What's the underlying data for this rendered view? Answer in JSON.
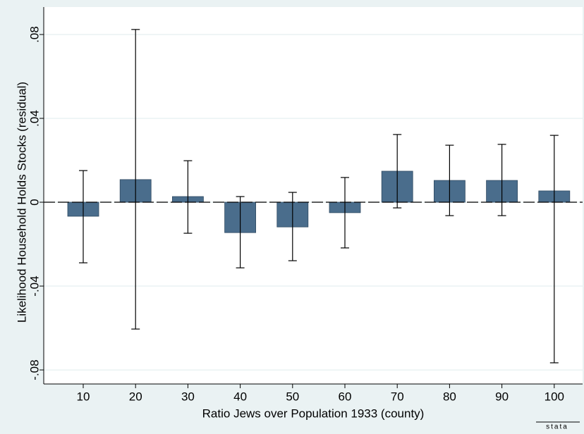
{
  "chart_data": {
    "type": "bar",
    "x_label": "Ratio Jews over Population 1933 (county)",
    "y_label": "Likelihood Household Holds Stocks (residual)",
    "categories": [
      "10",
      "20",
      "30",
      "40",
      "50",
      "60",
      "70",
      "80",
      "90",
      "100"
    ],
    "values": [
      -0.0067,
      0.0108,
      0.0027,
      -0.0145,
      -0.0118,
      -0.005,
      0.0148,
      0.0104,
      0.0104,
      0.0054
    ],
    "ci_lower": [
      -0.0289,
      -0.0605,
      -0.0148,
      -0.0313,
      -0.0279,
      -0.0218,
      -0.0027,
      -0.0064,
      -0.0064,
      -0.0766
    ],
    "ci_upper": [
      0.0151,
      0.0824,
      0.0198,
      0.0027,
      0.0047,
      0.0118,
      0.0323,
      0.0272,
      0.0276,
      0.0319
    ],
    "color": "#4a6d8c",
    "ylim": [
      -0.0867,
      0.0931
    ],
    "yticks": [
      {
        "value": -0.08,
        "label": "-.08"
      },
      {
        "value": -0.04,
        "label": "-.04"
      },
      0,
      {
        "value": 0.04,
        "label": ".04"
      },
      {
        "value": 0.08,
        "label": ".08"
      }
    ],
    "grid": true,
    "watermark": "stata"
  }
}
